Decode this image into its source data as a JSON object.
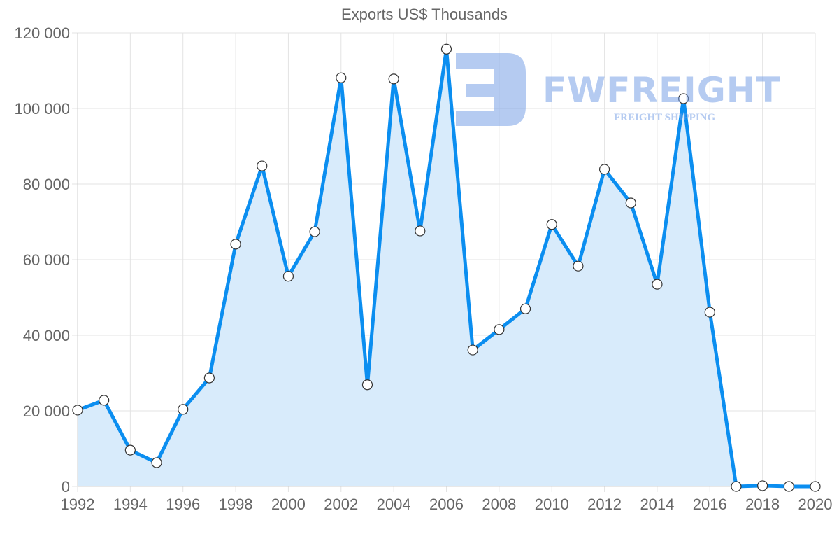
{
  "chart_data": {
    "type": "line",
    "title": "Exports US$ Thousands",
    "xlabel": "",
    "ylabel": "",
    "x": [
      1992,
      1993,
      1994,
      1995,
      1996,
      1997,
      1998,
      1999,
      2000,
      2001,
      2002,
      2003,
      2004,
      2005,
      2006,
      2007,
      2008,
      2009,
      2010,
      2011,
      2012,
      2013,
      2014,
      2015,
      2016,
      2017,
      2018,
      2019,
      2020
    ],
    "series": [
      {
        "name": "Exports US$ Thousands",
        "values": [
          20200,
          22800,
          9600,
          6300,
          20400,
          28700,
          64100,
          84800,
          55600,
          67400,
          108100,
          26900,
          107800,
          67600,
          115700,
          36100,
          41500,
          47000,
          69300,
          58300,
          83900,
          75000,
          53500,
          102600,
          46100,
          0,
          200,
          0,
          0
        ],
        "color": "#0b8ef0",
        "fill": "#d8ebfb",
        "area": true
      }
    ],
    "ylim": [
      0,
      120000
    ],
    "yticks": [
      "0",
      "20 000",
      "40 000",
      "60 000",
      "80 000",
      "100 000",
      "120 000"
    ],
    "xticks": [
      "1992",
      "1994",
      "1996",
      "1998",
      "2000",
      "2002",
      "2004",
      "2006",
      "2008",
      "2010",
      "2012",
      "2014",
      "2016",
      "2018",
      "2020"
    ],
    "grid": true,
    "legend": "none"
  },
  "watermark": {
    "brand": "FWFREIGHT",
    "tagline": "FREIGHT SHIPPING"
  }
}
